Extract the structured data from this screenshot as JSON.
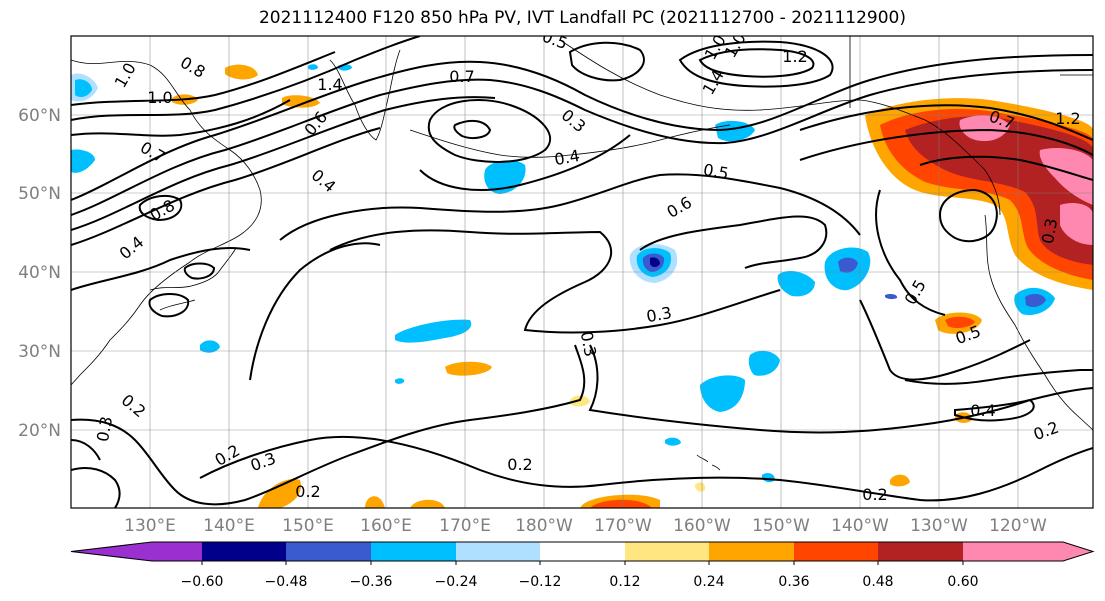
{
  "title": "2021112400 F120 850 hPa PV, IVT Landfall PC (2021112700 - 2021112900)",
  "lat_ticks": [
    "60°N",
    "50°N",
    "40°N",
    "30°N",
    "20°N"
  ],
  "lon_ticks": [
    "130°E",
    "140°E",
    "150°E",
    "160°E",
    "170°E",
    "180°W",
    "170°W",
    "160°W",
    "150°W",
    "140°W",
    "130°W",
    "120°W"
  ],
  "colorbar": {
    "tick_labels": [
      "−0.60",
      "−0.48",
      "−0.36",
      "−0.24",
      "−0.12",
      "0.12",
      "0.24",
      "0.36",
      "0.48",
      "0.60"
    ],
    "colors": [
      "#9b30d0",
      "#00008b",
      "#3a5bd0",
      "#00bfff",
      "#b0e0ff",
      "#ffffff",
      "#ffe680",
      "#ffa500",
      "#ff4500",
      "#b22222",
      "#ff88b0"
    ]
  },
  "contour_labels": [
    "1.0",
    "0.5",
    "1.0",
    "1.2",
    "1.4",
    "0.8",
    "1.0",
    "0.7",
    "1.4",
    "0.6",
    "0.3",
    "0.4",
    "0.5",
    "0.6",
    "0.3",
    "0.3",
    "0.5",
    "0.5",
    "0.4",
    "0.2",
    "0.2",
    "0.3",
    "0.2",
    "0.2",
    "0.2",
    "0.3",
    "0.2",
    "1.2",
    "0.7",
    "0.8",
    "0.4",
    "0.7",
    "0.4",
    "0.3",
    "1.0"
  ]
}
